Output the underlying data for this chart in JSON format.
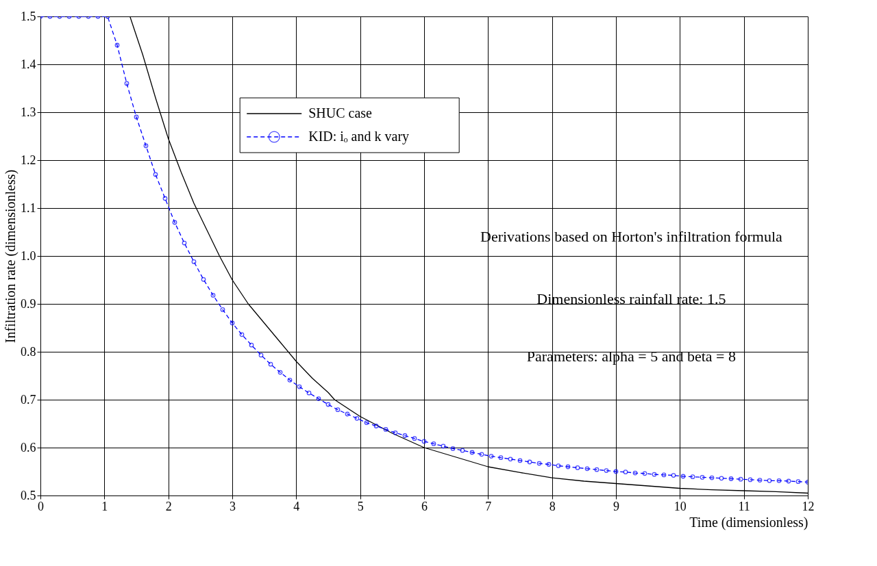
{
  "chart_data": {
    "type": "line",
    "xlabel": "Time (dimensionless)",
    "ylabel": "Infiltration rate (dimensionless)",
    "xlim": [
      0,
      12
    ],
    "xticks": [
      0,
      1,
      2,
      3,
      4,
      5,
      6,
      7,
      8,
      9,
      10,
      11,
      12
    ],
    "ylim": [
      0.5,
      1.5
    ],
    "yticks": [
      0.5,
      0.6,
      0.7,
      0.8,
      0.9,
      {
        "value": 1,
        "label": "1.0"
      },
      1.1,
      1.2,
      1.3,
      1.4,
      1.5
    ],
    "grid": true,
    "legend": "top",
    "annotations": [
      "Derivations based on Horton's infiltration formula",
      "Dimensionless rainfall rate: 1.5",
      "Parameters: alpha = 5 and beta = 8"
    ],
    "series": [
      {
        "name": "SHUC case",
        "color": "#000000",
        "line_style": "solid",
        "marker": "none",
        "x": [
          0,
          1.4,
          1.6,
          1.8,
          2,
          2.2,
          2.4,
          2.6,
          2.8,
          3,
          3.25,
          3.5,
          3.75,
          4,
          4.25,
          4.5,
          4.6,
          5,
          5.5,
          6,
          6.5,
          7,
          7.5,
          8,
          8.5,
          9,
          9.5,
          10,
          10.5,
          11,
          11.5,
          12
        ],
        "values": [
          1.5,
          1.5,
          1.42,
          1.33,
          1.245,
          1.175,
          1.11,
          1.055,
          1.0,
          0.95,
          0.9,
          0.86,
          0.82,
          0.78,
          0.745,
          0.715,
          0.7,
          0.665,
          0.63,
          0.6,
          0.58,
          0.56,
          0.548,
          0.537,
          0.53,
          0.525,
          0.52,
          0.515,
          0.512,
          0.51,
          0.508,
          0.505
        ]
      },
      {
        "name": "KID: iₒ and k vary",
        "color": "#0000ff",
        "line_style": "dashed",
        "marker": "circle",
        "x": [
          0,
          0.15,
          0.3,
          0.45,
          0.6,
          0.75,
          0.9,
          1.05,
          1.2,
          1.35,
          1.5,
          1.65,
          1.8,
          1.95,
          2.1,
          2.25,
          2.4,
          2.55,
          2.7,
          2.85,
          3.0,
          3.15,
          3.3,
          3.45,
          3.6,
          3.75,
          3.9,
          4.05,
          4.2,
          4.35,
          4.5,
          4.65,
          4.8,
          4.95,
          5.1,
          5.25,
          5.4,
          5.55,
          5.7,
          5.85,
          6.0,
          6.15,
          6.3,
          6.45,
          6.6,
          6.75,
          6.9,
          7.05,
          7.2,
          7.35,
          7.5,
          7.65,
          7.8,
          7.95,
          8.1,
          8.25,
          8.4,
          8.55,
          8.7,
          8.85,
          9.0,
          9.15,
          9.3,
          9.45,
          9.6,
          9.75,
          9.9,
          10.05,
          10.2,
          10.35,
          10.5,
          10.65,
          10.8,
          10.95,
          11.1,
          11.25,
          11.4,
          11.55,
          11.7,
          11.85,
          12
        ],
        "values": [
          1.5,
          1.5,
          1.5,
          1.5,
          1.5,
          1.5,
          1.5,
          1.5,
          1.44,
          1.36,
          1.29,
          1.23,
          1.17,
          1.12,
          1.07,
          1.027,
          0.988,
          0.951,
          0.918,
          0.888,
          0.86,
          0.836,
          0.814,
          0.793,
          0.774,
          0.757,
          0.741,
          0.727,
          0.714,
          0.702,
          0.69,
          0.679,
          0.67,
          0.661,
          0.652,
          0.645,
          0.638,
          0.631,
          0.625,
          0.619,
          0.613,
          0.608,
          0.603,
          0.598,
          0.594,
          0.59,
          0.586,
          0.582,
          0.579,
          0.576,
          0.573,
          0.57,
          0.567,
          0.565,
          0.562,
          0.56,
          0.558,
          0.556,
          0.554,
          0.552,
          0.55,
          0.549,
          0.547,
          0.546,
          0.544,
          0.543,
          0.542,
          0.54,
          0.539,
          0.538,
          0.537,
          0.536,
          0.535,
          0.534,
          0.533,
          0.532,
          0.531,
          0.531,
          0.53,
          0.529,
          0.528
        ]
      }
    ]
  }
}
